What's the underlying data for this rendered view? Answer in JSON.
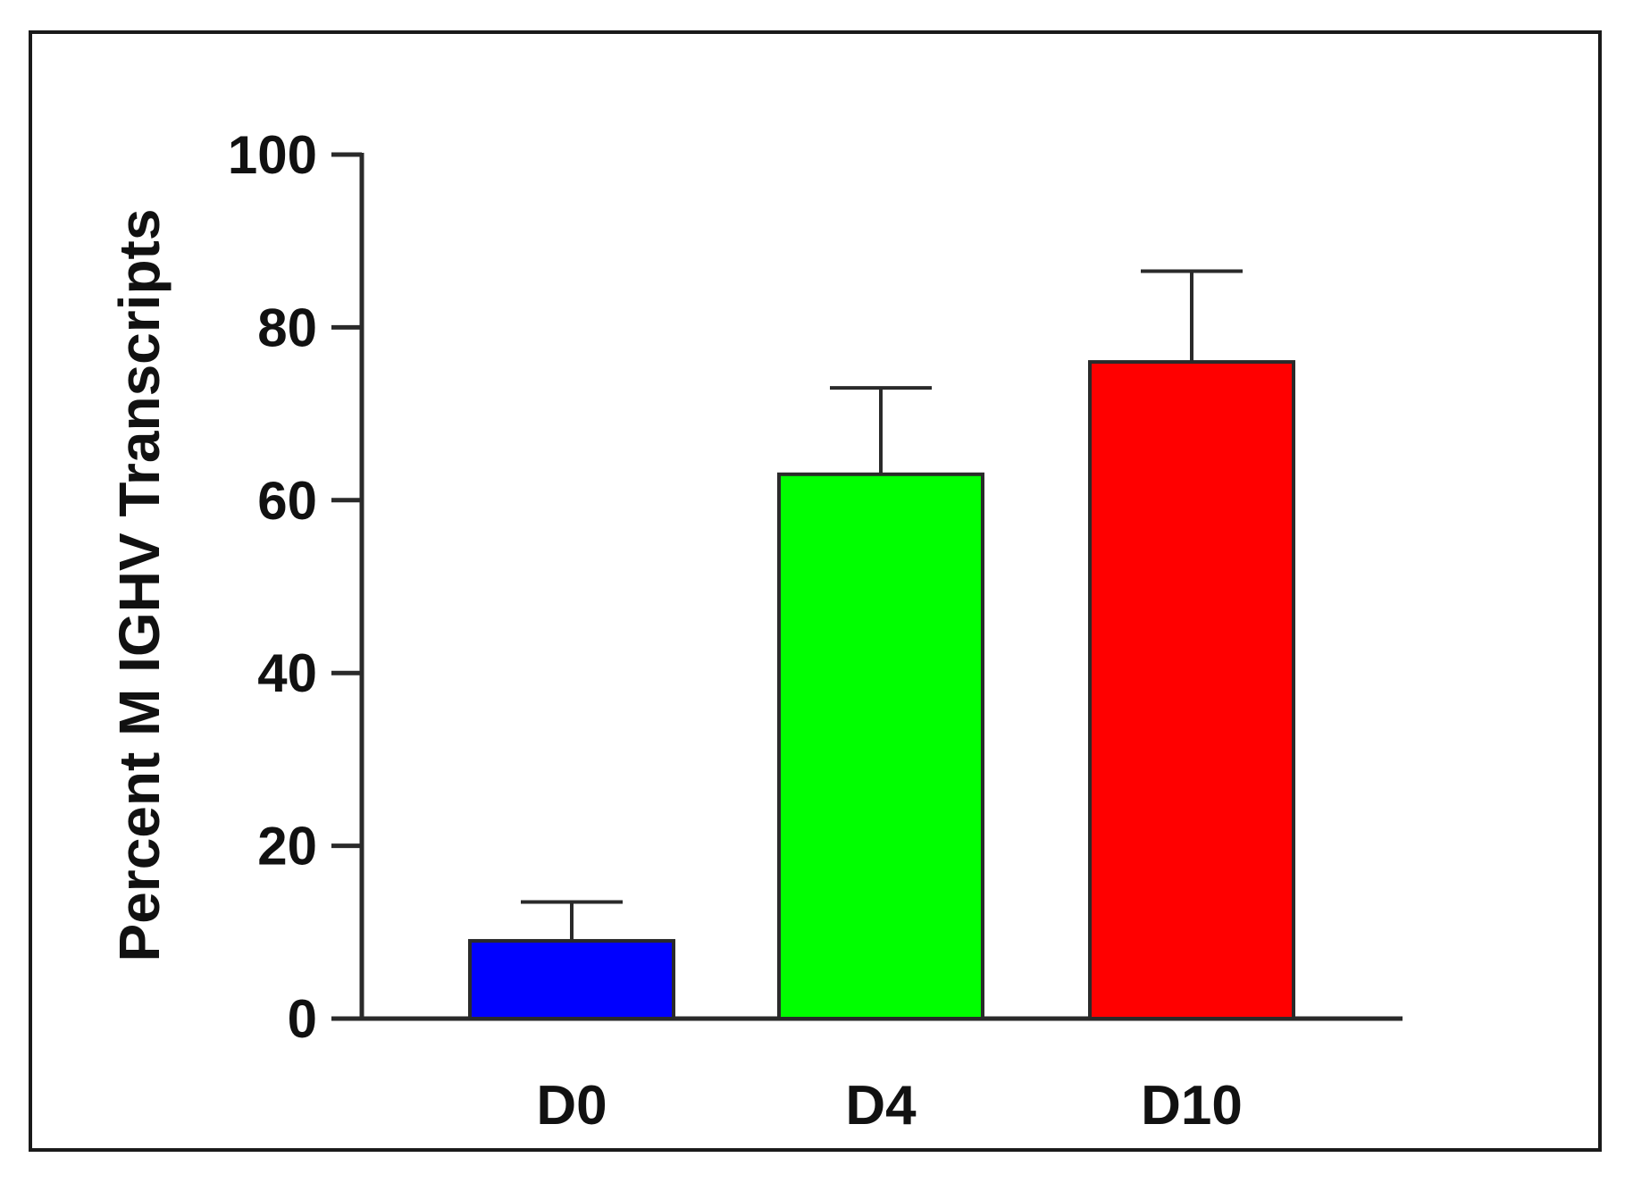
{
  "chart_data": {
    "type": "bar",
    "title": "",
    "xlabel": "",
    "ylabel": "Percent M  IGHV Transcripts",
    "categories": [
      "D0",
      "D4",
      "D10"
    ],
    "values": [
      9,
      63,
      76
    ],
    "error_upper": [
      13.5,
      73,
      86.5
    ],
    "colors": [
      "#0000ff",
      "#00ff00",
      "#ff0000"
    ],
    "ylim": [
      0,
      100
    ],
    "yticks": [
      0,
      20,
      40,
      60,
      80,
      100
    ],
    "grid": false,
    "legend": "none"
  }
}
